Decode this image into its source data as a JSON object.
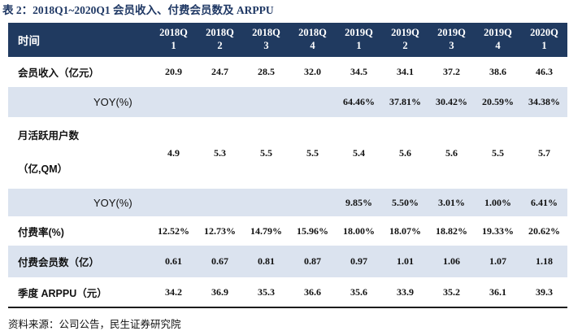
{
  "title": "表 2：2018Q1~2020Q1 会员收入、付费会员数及 ARPPU",
  "source": "资料来源：公司公告，民生证券研究院",
  "colors": {
    "header_bg": "#203a60",
    "shaded_row_bg": "#dbe3ef",
    "title_color": "#1f3864"
  },
  "table": {
    "corner_label": "时间",
    "columns": [
      {
        "line1": "2018Q",
        "line2": "1"
      },
      {
        "line1": "2018Q",
        "line2": "2"
      },
      {
        "line1": "2018Q",
        "line2": "3"
      },
      {
        "line1": "2018Q",
        "line2": "4"
      },
      {
        "line1": "2019Q",
        "line2": "1"
      },
      {
        "line1": "2019Q",
        "line2": "2"
      },
      {
        "line1": "2019Q",
        "line2": "3"
      },
      {
        "line1": "2019Q",
        "line2": "4"
      },
      {
        "line1": "2020Q",
        "line2": "1"
      }
    ],
    "rows": [
      {
        "label": "会员收入（亿元）",
        "values": [
          "20.9",
          "24.7",
          "28.5",
          "32.0",
          "34.5",
          "34.1",
          "37.2",
          "38.6",
          "46.3"
        ]
      },
      {
        "label": "YOY(%)",
        "values": [
          "",
          "",
          "",
          "",
          "64.46%",
          "37.81%",
          "30.42%",
          "20.59%",
          "34.38%"
        ]
      },
      {
        "label": "月活跃用户数",
        "label2": "（亿,QM）",
        "values": [
          "4.9",
          "5.3",
          "5.5",
          "5.5",
          "5.4",
          "5.6",
          "5.6",
          "5.5",
          "5.7"
        ]
      },
      {
        "label": "YOY(%)",
        "values": [
          "",
          "",
          "",
          "",
          "9.85%",
          "5.50%",
          "3.01%",
          "1.00%",
          "6.41%"
        ]
      },
      {
        "label": "付费率(%)",
        "values": [
          "12.52%",
          "12.73%",
          "14.79%",
          "15.96%",
          "18.00%",
          "18.07%",
          "18.82%",
          "19.33%",
          "20.62%"
        ]
      },
      {
        "label": "付费会员数（亿）",
        "values": [
          "0.61",
          "0.67",
          "0.81",
          "0.87",
          "0.97",
          "1.01",
          "1.06",
          "1.07",
          "1.18"
        ]
      },
      {
        "label": "季度 ARPPU（元）",
        "values": [
          "34.2",
          "36.9",
          "35.3",
          "36.6",
          "35.6",
          "33.9",
          "35.2",
          "36.1",
          "39.3"
        ]
      }
    ]
  }
}
